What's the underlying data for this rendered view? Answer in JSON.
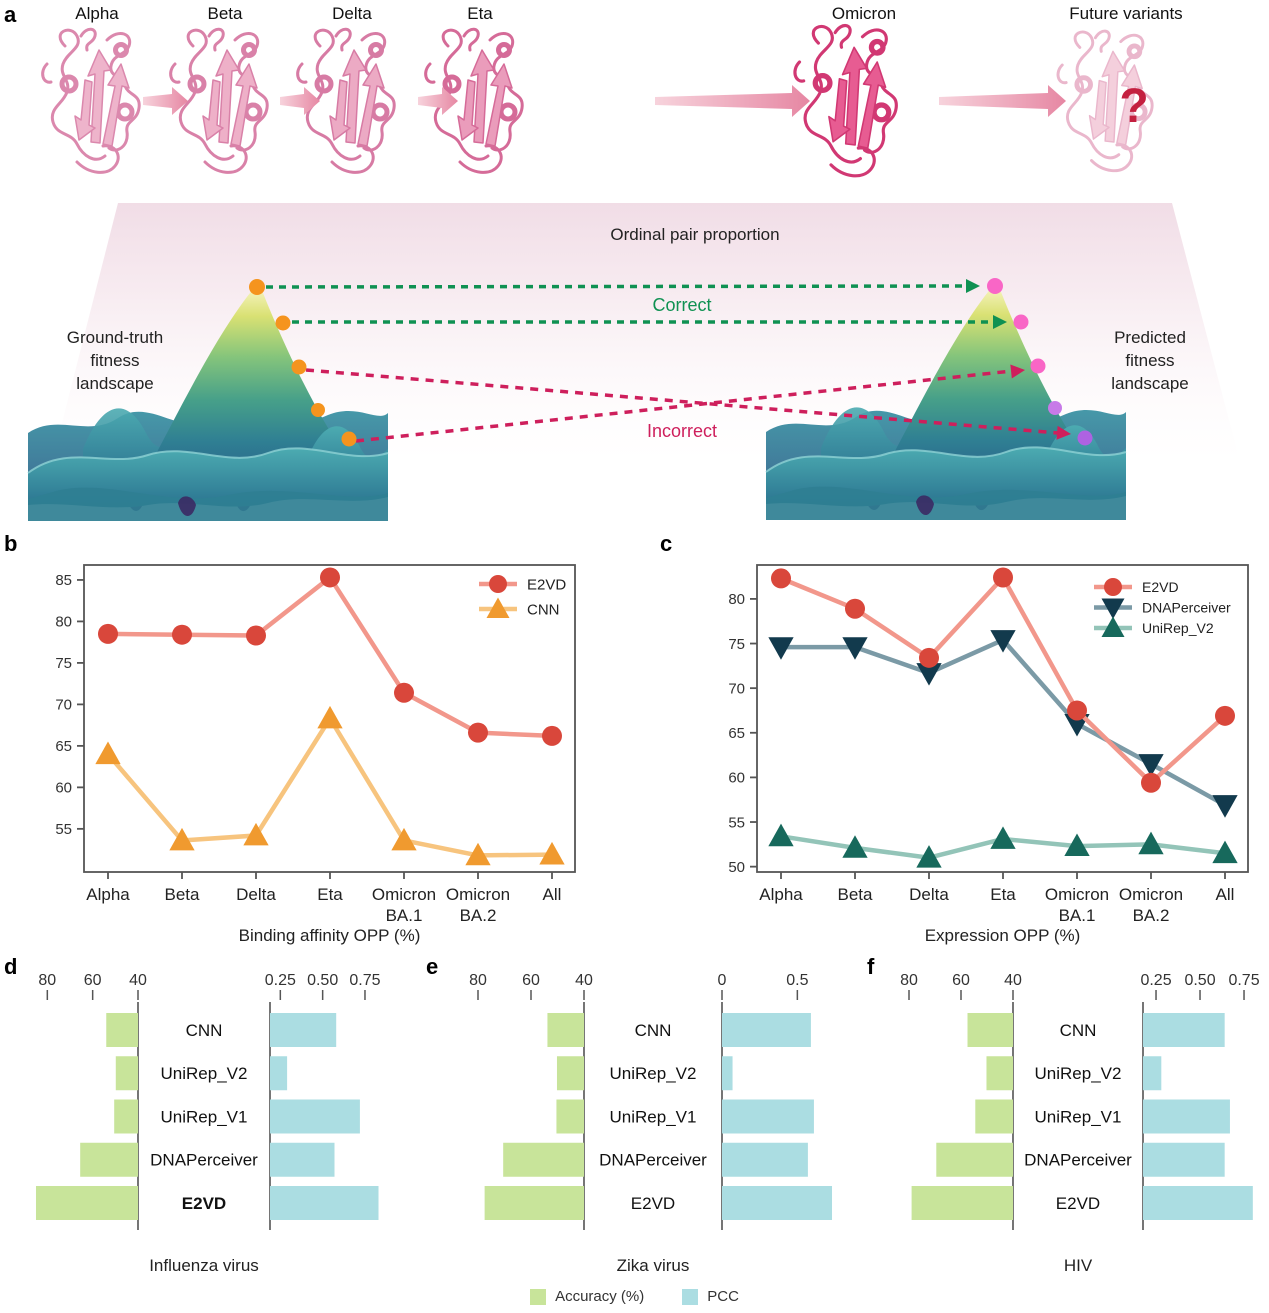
{
  "panel_letters": {
    "a": "a",
    "b": "b",
    "c": "c",
    "d": "d",
    "e": "e",
    "f": "f"
  },
  "panel_a": {
    "variants": [
      "Alpha",
      "Beta",
      "Delta",
      "Eta",
      "Omicron",
      "Future variants"
    ],
    "banner_label": "Ordinal pair proportion",
    "ground_truth_label_lines": [
      "Ground-truth",
      "fitness",
      "landscape"
    ],
    "predicted_label_lines": [
      "Predicted",
      "fitness",
      "landscape"
    ],
    "correct_label": "Correct",
    "incorrect_label": "Incorrect",
    "future_question_mark": "?"
  },
  "chart_data": [
    {
      "id": "b",
      "type": "line",
      "xlabel": "Binding affinity OPP (%)",
      "categories": [
        "Alpha",
        "Beta",
        "Delta",
        "Eta",
        "Omicron",
        "Omicron",
        "All"
      ],
      "category_sublabels": [
        "",
        "",
        "",
        "",
        "BA.1",
        "BA.2",
        ""
      ],
      "ylim": [
        49.8,
        86.8
      ],
      "yticks": [
        55,
        60,
        65,
        70,
        75,
        80,
        85
      ],
      "grid": false,
      "legend_position": "top-right",
      "series": [
        {
          "name": "E2VD",
          "marker": "circle",
          "marker_color": "#d9473b",
          "line_color": "#f2978b",
          "values": [
            78.5,
            78.4,
            78.3,
            85.3,
            71.4,
            66.6,
            66.2
          ]
        },
        {
          "name": "CNN",
          "marker": "triangle-up",
          "marker_color": "#f09a2f",
          "line_color": "#f7c47e",
          "values": [
            64.0,
            53.6,
            54.2,
            68.3,
            53.6,
            51.8,
            51.9
          ]
        }
      ]
    },
    {
      "id": "c",
      "type": "line",
      "xlabel": "Expression OPP (%)",
      "categories": [
        "Alpha",
        "Beta",
        "Delta",
        "Eta",
        "Omicron",
        "Omicron",
        "All"
      ],
      "category_sublabels": [
        "",
        "",
        "",
        "",
        "BA.1",
        "BA.2",
        ""
      ],
      "ylim": [
        49.4,
        83.8
      ],
      "yticks": [
        50,
        55,
        60,
        65,
        70,
        75,
        80
      ],
      "grid": false,
      "legend_position": "top-right",
      "series": [
        {
          "name": "E2VD",
          "marker": "circle",
          "marker_color": "#d9473b",
          "line_color": "#f2978b",
          "values": [
            82.3,
            78.9,
            73.4,
            82.4,
            67.5,
            59.4,
            66.9
          ]
        },
        {
          "name": "DNAPerceiver",
          "marker": "triangle-down",
          "marker_color": "#123a4d",
          "line_color": "#7b9aa6",
          "values": [
            74.6,
            74.6,
            71.7,
            75.4,
            66.0,
            61.5,
            56.9
          ]
        },
        {
          "name": "UniRep_V2",
          "marker": "triangle-up",
          "marker_color": "#17695c",
          "line_color": "#93c4b8",
          "values": [
            53.4,
            52.1,
            51.0,
            53.1,
            52.3,
            52.5,
            51.5
          ]
        }
      ]
    },
    {
      "id": "d",
      "type": "bar",
      "title": "Influenza virus",
      "models": [
        "CNN",
        "UniRep_V2",
        "UniRep_V1",
        "DNAPerceiver",
        "E2VD"
      ],
      "bold_model": "E2VD",
      "accuracy": [
        54.0,
        49.8,
        50.5,
        65.5,
        85.0
      ],
      "pcc": [
        0.58,
        0.29,
        0.72,
        0.57,
        0.83
      ],
      "acc_tick_labels": [
        "80",
        "60",
        "40"
      ],
      "acc_tick_values": [
        80,
        60,
        40
      ],
      "pcc_tick_labels": [
        "0.25",
        "0.50",
        "0.75"
      ],
      "pcc_tick_values": [
        0.25,
        0.5,
        0.75
      ]
    },
    {
      "id": "e",
      "type": "bar",
      "title": "Zika virus",
      "models": [
        "CNN",
        "UniRep_V2",
        "UniRep_V1",
        "DNAPerceiver",
        "E2VD"
      ],
      "bold_model": "",
      "accuracy": [
        53.8,
        50.2,
        50.4,
        70.5,
        77.5
      ],
      "pcc": [
        0.59,
        0.07,
        0.61,
        0.57,
        0.73
      ],
      "acc_tick_labels": [
        "80",
        "60",
        "40"
      ],
      "acc_tick_values": [
        80,
        60,
        40
      ],
      "pcc_tick_labels": [
        "0",
        "0.5"
      ],
      "pcc_tick_values": [
        0,
        0.5
      ]
    },
    {
      "id": "f",
      "type": "bar",
      "title": "HIV",
      "models": [
        "CNN",
        "UniRep_V2",
        "UniRep_V1",
        "DNAPerceiver",
        "E2VD"
      ],
      "bold_model": "",
      "accuracy": [
        57.5,
        50.2,
        54.5,
        69.5,
        79.0
      ],
      "pcc": [
        0.64,
        0.28,
        0.67,
        0.64,
        0.8
      ],
      "acc_tick_labels": [
        "80",
        "60",
        "40"
      ],
      "acc_tick_values": [
        80,
        60,
        40
      ],
      "pcc_tick_labels": [
        "0.25",
        "0.50",
        "0.75"
      ],
      "pcc_tick_values": [
        0.25,
        0.5,
        0.75
      ]
    }
  ],
  "bottom_legend": {
    "accuracy_label": "Accuracy (%)",
    "pcc_label": "PCC"
  },
  "colors": {
    "accuracy_bar": "#c8e49a",
    "pcc_bar": "#abdde2",
    "correct_green": "#0f9152",
    "incorrect_crimson": "#ce1f5c",
    "orange_dot": "#f5941e",
    "pink_dot": "#f966c6",
    "violet_dot": "#ae62e2",
    "protein_pink": "#e7a3bf",
    "omicron_pink": "#e75c92",
    "question_red": "#c42040"
  }
}
